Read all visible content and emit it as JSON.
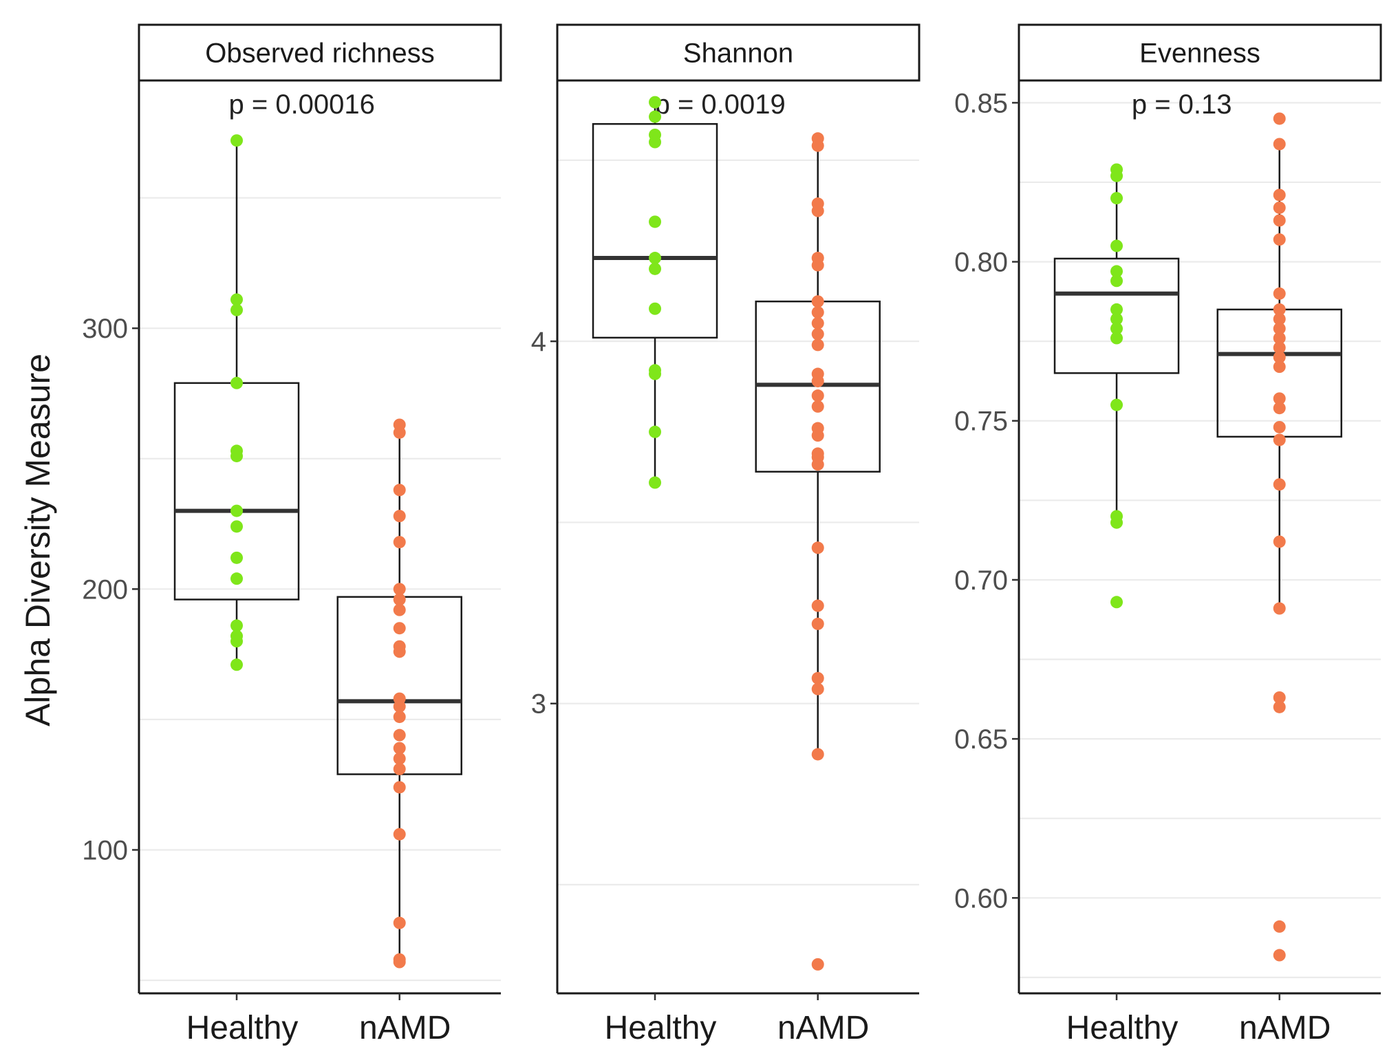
{
  "chart_data": {
    "type": "box",
    "ylabel": "Alpha Diversity Measure",
    "colors": {
      "Healthy": "#7fe61a",
      "nAMD": "#f27a4b"
    },
    "panels": [
      {
        "title": "Observed richness",
        "pvalue": "p = 0.00016",
        "ylim": [
          45,
          395
        ],
        "yticks": [
          100,
          200,
          300
        ],
        "ytick_labels": [
          "100",
          "200",
          "300"
        ],
        "categories": [
          "Healthy",
          "nAMD"
        ],
        "groups": [
          {
            "name": "Healthy",
            "box": {
              "q1": 196,
              "median": 230,
              "q3": 279,
              "whisker_low": 171,
              "whisker_high": 372
            },
            "points": [
              372,
              311,
              307,
              279,
              253,
              251,
              230,
              224,
              212,
              204,
              186,
              182,
              180,
              171
            ]
          },
          {
            "name": "nAMD",
            "box": {
              "q1": 129,
              "median": 157,
              "q3": 197,
              "whisker_low": 57,
              "whisker_high": 263
            },
            "points": [
              263,
              260,
              238,
              228,
              218,
              200,
              196,
              192,
              185,
              178,
              176,
              158,
              155,
              151,
              144,
              139,
              135,
              131,
              124,
              106,
              72,
              58,
              57
            ]
          }
        ]
      },
      {
        "title": "Shannon",
        "pvalue": "p = 0.0019",
        "ylim": [
          2.2,
          4.72
        ],
        "yticks": [
          3,
          4
        ],
        "ytick_labels": [
          "3",
          "4"
        ],
        "categories": [
          "Healthy",
          "nAMD"
        ],
        "groups": [
          {
            "name": "Healthy",
            "box": {
              "q1": 4.01,
              "median": 4.23,
              "q3": 4.6,
              "whisker_low": 3.61,
              "whisker_high": 4.66
            },
            "points": [
              4.66,
              4.62,
              4.57,
              4.55,
              4.33,
              4.23,
              4.2,
              4.09,
              3.92,
              3.91,
              3.75,
              3.61
            ]
          },
          {
            "name": "nAMD",
            "box": {
              "q1": 3.64,
              "median": 3.88,
              "q3": 4.11,
              "whisker_low": 2.85,
              "whisker_high": 4.56
            },
            "points": [
              4.56,
              4.54,
              4.38,
              4.36,
              4.23,
              4.21,
              4.11,
              4.08,
              4.05,
              4.02,
              3.99,
              3.91,
              3.89,
              3.85,
              3.82,
              3.76,
              3.74,
              3.69,
              3.68,
              3.66,
              3.43,
              3.27,
              3.22,
              3.07,
              3.04,
              2.86,
              2.28
            ]
          }
        ]
      },
      {
        "title": "Evenness",
        "pvalue": "p = 0.13",
        "ylim": [
          0.57,
          0.857
        ],
        "yticks": [
          0.6,
          0.65,
          0.7,
          0.75,
          0.8,
          0.85
        ],
        "ytick_labels": [
          "0.60",
          "0.65",
          "0.70",
          "0.75",
          "0.80",
          "0.85"
        ],
        "categories": [
          "Healthy",
          "nAMD"
        ],
        "groups": [
          {
            "name": "Healthy",
            "box": {
              "q1": 0.765,
              "median": 0.79,
              "q3": 0.801,
              "whisker_low": 0.72,
              "whisker_high": 0.828
            },
            "points": [
              0.829,
              0.827,
              0.82,
              0.805,
              0.797,
              0.794,
              0.785,
              0.782,
              0.779,
              0.776,
              0.755,
              0.72,
              0.718,
              0.693
            ]
          },
          {
            "name": "nAMD",
            "box": {
              "q1": 0.745,
              "median": 0.771,
              "q3": 0.785,
              "whisker_low": 0.691,
              "whisker_high": 0.837
            },
            "points": [
              0.845,
              0.837,
              0.821,
              0.817,
              0.813,
              0.807,
              0.79,
              0.785,
              0.782,
              0.779,
              0.776,
              0.773,
              0.77,
              0.767,
              0.757,
              0.754,
              0.748,
              0.744,
              0.73,
              0.712,
              0.691,
              0.663,
              0.66,
              0.591,
              0.582
            ]
          }
        ]
      }
    ]
  }
}
